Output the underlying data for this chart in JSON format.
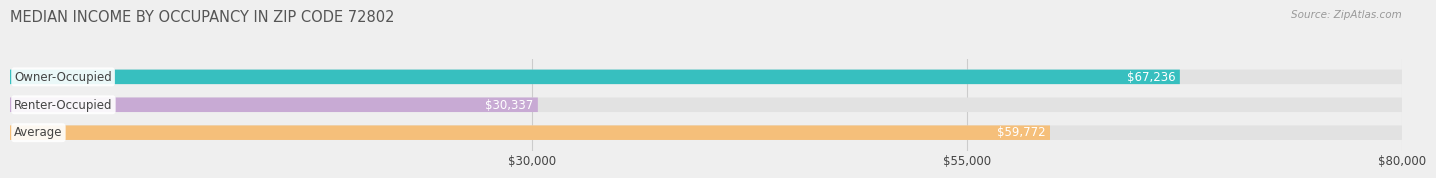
{
  "title": "MEDIAN INCOME BY OCCUPANCY IN ZIP CODE 72802",
  "source": "Source: ZipAtlas.com",
  "categories": [
    "Owner-Occupied",
    "Renter-Occupied",
    "Average"
  ],
  "values": [
    67236,
    30337,
    59772
  ],
  "bar_colors": [
    "#37bfbf",
    "#c8aad4",
    "#f5bf7a"
  ],
  "bar_labels": [
    "$67,236",
    "$30,337",
    "$59,772"
  ],
  "label_inside_bar": [
    true,
    false,
    false
  ],
  "xlim_min": 0,
  "xlim_max": 80000,
  "xticks": [
    30000,
    55000,
    80000
  ],
  "xtick_labels": [
    "$30,000",
    "$55,000",
    "$80,000"
  ],
  "bg_color": "#efefef",
  "bar_bg_color": "#e2e2e2",
  "grid_color": "#cccccc",
  "label_text_color": "#444444",
  "value_inside_color": "#ffffff",
  "value_outside_color": "#555555",
  "title_color": "#555555",
  "bar_height": 0.52,
  "label_fontsize": 8.5,
  "title_fontsize": 10.5,
  "source_fontsize": 7.5
}
